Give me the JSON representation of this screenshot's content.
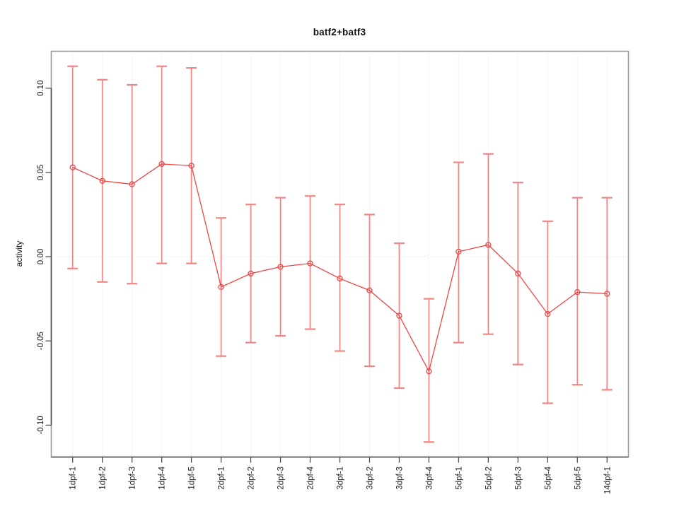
{
  "figure": {
    "background": "#ffffff"
  },
  "chart_data": {
    "type": "line",
    "title": "batf2+batf3",
    "xlabel": "",
    "ylabel": "activity",
    "categories": [
      "1dpf-1",
      "1dpf-2",
      "1dpf-3",
      "1dpf-4",
      "1dpf-5",
      "2dpf-1",
      "2dpf-2",
      "2dpf-3",
      "2dpf-4",
      "3dpf-1",
      "3dpf-2",
      "3dpf-3",
      "3dpf-4",
      "5dpf-1",
      "5dpf-2",
      "5dpf-3",
      "5dpf-4",
      "5dpf-5",
      "14dpf-1"
    ],
    "series": [
      {
        "name": "batf2+batf3 activity",
        "values": [
          0.053,
          0.045,
          0.043,
          0.055,
          0.054,
          -0.018,
          -0.01,
          -0.006,
          -0.004,
          -0.013,
          -0.02,
          -0.035,
          -0.068,
          0.003,
          0.007,
          -0.01,
          -0.034,
          -0.021,
          -0.022
        ],
        "error_upper": [
          0.113,
          0.105,
          0.102,
          0.113,
          0.112,
          0.023,
          0.031,
          0.035,
          0.036,
          0.031,
          0.025,
          0.008,
          -0.025,
          0.056,
          0.061,
          0.044,
          0.021,
          0.035,
          0.035
        ],
        "error_lower": [
          -0.007,
          -0.015,
          -0.016,
          -0.004,
          -0.004,
          -0.059,
          -0.051,
          -0.047,
          -0.043,
          -0.056,
          -0.065,
          -0.078,
          -0.11,
          -0.051,
          -0.046,
          -0.064,
          -0.087,
          -0.076,
          -0.079
        ]
      }
    ],
    "ylim": [
      -0.1189,
      0.1219
    ],
    "yticks": [
      -0.1,
      -0.05,
      0.0,
      0.05,
      0.1
    ],
    "ytick_labels": [
      "-0.10",
      "-0.05",
      "0.00",
      "0.05",
      "0.10"
    ],
    "grid": {
      "vertical_at_each_category": true,
      "hline_at": 0,
      "line_style": "dotted"
    },
    "legend": "none",
    "marker": "open-circle",
    "colors": {
      "series_line": "#ee4545",
      "point_stroke": "#ee4545",
      "error_bar": "#f28585",
      "grid": "#dcdcdc",
      "axis": "#4d4d4d",
      "box": "#9a9a9a",
      "text": "#1a1a1a",
      "background": "#ffffff"
    }
  }
}
